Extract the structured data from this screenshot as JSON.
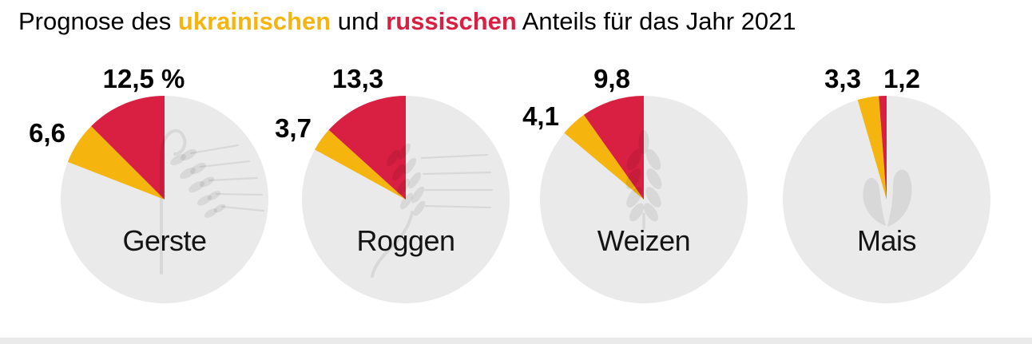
{
  "title": {
    "parts": [
      {
        "text": "Prognose des ",
        "emphasis": "none"
      },
      {
        "text": "ukrainischen",
        "emphasis": "ukraine"
      },
      {
        "text": " und ",
        "emphasis": "none"
      },
      {
        "text": "russischen",
        "emphasis": "russia"
      },
      {
        "text": " Anteils für das Jahr 2021",
        "emphasis": "none"
      }
    ]
  },
  "colors": {
    "ukraine": "#F6B40F",
    "russia": "#D91F42",
    "pie_background": "#EAEAEA",
    "footer_band": "#EAEAEA",
    "text": "#000000"
  },
  "chart_data": {
    "type": "pie",
    "title": "Prognose des ukrainischen und russischen Anteils für das Jahr 2021",
    "unit": "%",
    "legend_position": "in-title",
    "categories": [
      "Gerste",
      "Roggen",
      "Weizen",
      "Mais"
    ],
    "series": [
      {
        "name": "ukrainischer Anteil",
        "color": "#F6B40F",
        "values": [
          6.6,
          3.7,
          4.1,
          3.3
        ]
      },
      {
        "name": "russischer Anteil",
        "color": "#D91F42",
        "values": [
          12.5,
          13.3,
          9.8,
          1.2
        ]
      }
    ],
    "pies": [
      {
        "label": "Gerste",
        "icon": "barley-icon",
        "ukraine": {
          "value": 6.6,
          "display": "6,6"
        },
        "russia": {
          "value": 12.5,
          "display": "12,5 %"
        }
      },
      {
        "label": "Roggen",
        "icon": "rye-icon",
        "ukraine": {
          "value": 3.7,
          "display": "3,7"
        },
        "russia": {
          "value": 13.3,
          "display": "13,3"
        }
      },
      {
        "label": "Weizen",
        "icon": "wheat-icon",
        "ukraine": {
          "value": 4.1,
          "display": "4,1"
        },
        "russia": {
          "value": 9.8,
          "display": "9,8"
        }
      },
      {
        "label": "Mais",
        "icon": "corn-icon",
        "ukraine": {
          "value": 3.3,
          "display": "3,3"
        },
        "russia": {
          "value": 1.2,
          "display": "1,2"
        }
      }
    ]
  }
}
